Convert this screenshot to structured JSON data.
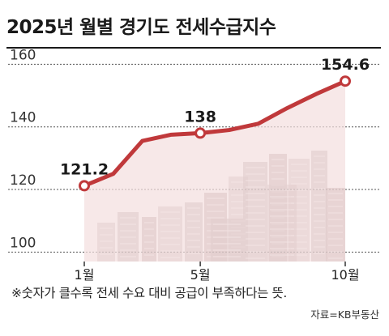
{
  "title": "2025년 월별 경기도 전세수급지수",
  "note": "※숫자가 클수록 전세 수요 대비 공급이 부족하다는 뜻.",
  "source": "자료=KB부동산",
  "colors": {
    "line": "#c0393b",
    "area": "#f3dede",
    "grid": "#555555",
    "buildings": "#b9a7a7"
  },
  "chart_data": {
    "type": "area",
    "title": "2025년 월별 경기도 전세수급지수",
    "x": [
      1,
      2,
      3,
      4,
      5,
      6,
      7,
      8,
      9,
      10
    ],
    "xtick_labels": [
      "1월",
      "5월",
      "10월"
    ],
    "xtick_positions": [
      1,
      5,
      10
    ],
    "series": [
      {
        "values": [
          121.2,
          125.0,
          135.5,
          137.5,
          138.0,
          139.0,
          141.0,
          146.0,
          150.5,
          154.6
        ]
      }
    ],
    "data_labels": [
      {
        "x": 1,
        "text": "121.2"
      },
      {
        "x": 5,
        "text": "138"
      },
      {
        "x": 10,
        "text": "154.6"
      }
    ],
    "yticks": [
      100,
      120,
      140,
      160
    ],
    "ylim": [
      97,
      165
    ],
    "xlim": [
      0,
      11
    ],
    "grid": true
  }
}
